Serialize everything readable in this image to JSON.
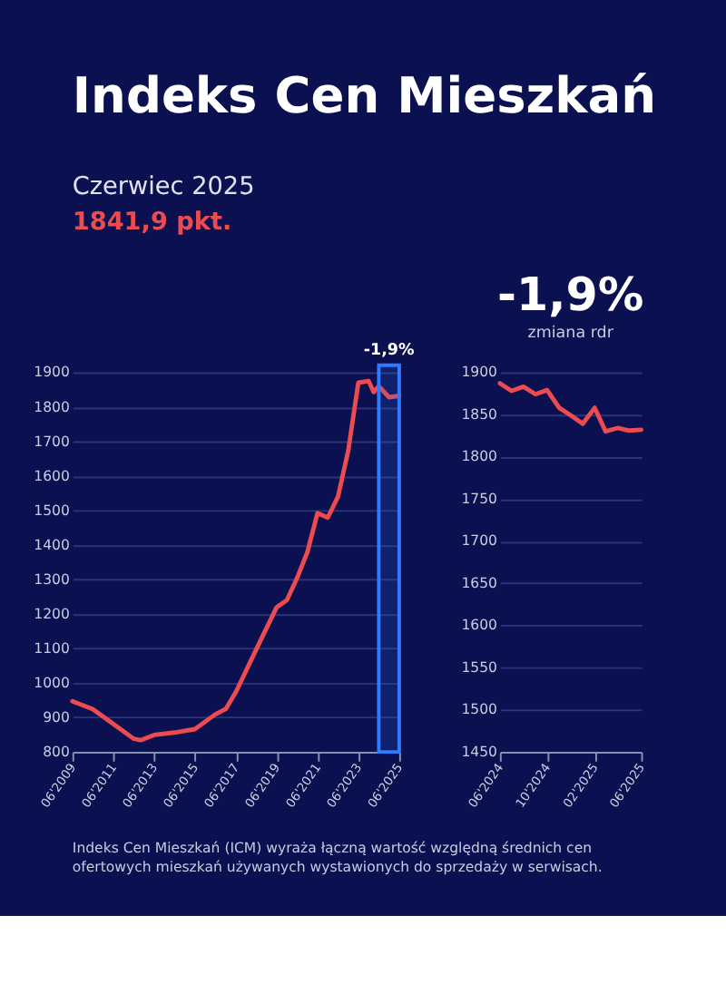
{
  "chart_data": [
    {
      "type": "line",
      "title": "Indeks Cen Mieszkań",
      "subtitle": "Czerwiec 2025",
      "annotations": [
        "1841,9 pkt.",
        "Indeks Cen Mieszkań (ICM) wyraża łączną wartość względną średnich cen ofertowych mieszkań używanych wystawionych do sprzedaży w serwisach."
      ],
      "x": [
        "2009-06",
        "2010-06",
        "2011-06",
        "2012-06",
        "2012-10",
        "2013-06",
        "2014-06",
        "2015-06",
        "2016-06",
        "2016-12",
        "2017-06",
        "2018-06",
        "2019-06",
        "2019-12",
        "2020-06",
        "2020-12",
        "2021-06",
        "2021-12",
        "2022-06",
        "2022-12",
        "2023-06",
        "2023-12",
        "2024-03",
        "2024-06",
        "2024-12",
        "2025-06"
      ],
      "series": [
        {
          "color": "#ec4b4f",
          "values": [
            947,
            924,
            881,
            838,
            834,
            849,
            856,
            866,
            909,
            924,
            973,
            1097,
            1219,
            1240,
            1304,
            1379,
            1492,
            1479,
            1539,
            1672,
            1870,
            1875,
            1843,
            1860,
            1828,
            1832
          ]
        }
      ],
      "xlim": [
        "2009-06",
        "2025-06"
      ],
      "xticks": [
        {
          "value": "2009-06",
          "label": "06'2009"
        },
        {
          "value": "2011-06",
          "label": "06'2011"
        },
        {
          "value": "2013-06",
          "label": "06'2013"
        },
        {
          "value": "2015-06",
          "label": "06'2015"
        },
        {
          "value": "2017-06",
          "label": "06'2017"
        },
        {
          "value": "2019-06",
          "label": "06'2019"
        },
        {
          "value": "2021-06",
          "label": "06'2021"
        },
        {
          "value": "2023-06",
          "label": "06'2023"
        },
        {
          "value": "2025-06",
          "label": "06'2025"
        }
      ],
      "ylim": [
        800,
        1900
      ],
      "yticks": [
        800,
        900,
        1000,
        1100,
        1200,
        1300,
        1400,
        1500,
        1600,
        1700,
        1800,
        1900
      ],
      "grid": "y",
      "bands": [
        {
          "axis": "x",
          "from": "2024-06",
          "to": "2025-06",
          "label": "-1,9%",
          "color": "#2f7bff"
        }
      ]
    },
    {
      "type": "line",
      "title": "-1,9%",
      "subtitle": "zmiana rdr",
      "x": [
        "2024-06",
        "2024-07",
        "2024-08",
        "2024-09",
        "2024-10",
        "2024-11",
        "2024-12",
        "2025-01",
        "2025-02",
        "2025-03",
        "2025-04",
        "2025-05",
        "2025-06"
      ],
      "series": [
        {
          "color": "#ec4b4f",
          "values": [
            1887,
            1878,
            1883,
            1874,
            1879,
            1858,
            1849,
            1839,
            1858,
            1830,
            1834,
            1831,
            1832
          ]
        }
      ],
      "xlim": [
        "2024-06",
        "2025-06"
      ],
      "xticks": [
        {
          "value": "2024-06",
          "label": "06'2024"
        },
        {
          "value": "2024-10",
          "label": "10'2024"
        },
        {
          "value": "2025-02",
          "label": "02'2025"
        },
        {
          "value": "2025-06",
          "label": "06'2025"
        }
      ],
      "ylim": [
        1450,
        1900
      ],
      "yticks": [
        1450,
        1500,
        1550,
        1600,
        1650,
        1700,
        1750,
        1800,
        1850,
        1900
      ],
      "grid": "y"
    }
  ]
}
